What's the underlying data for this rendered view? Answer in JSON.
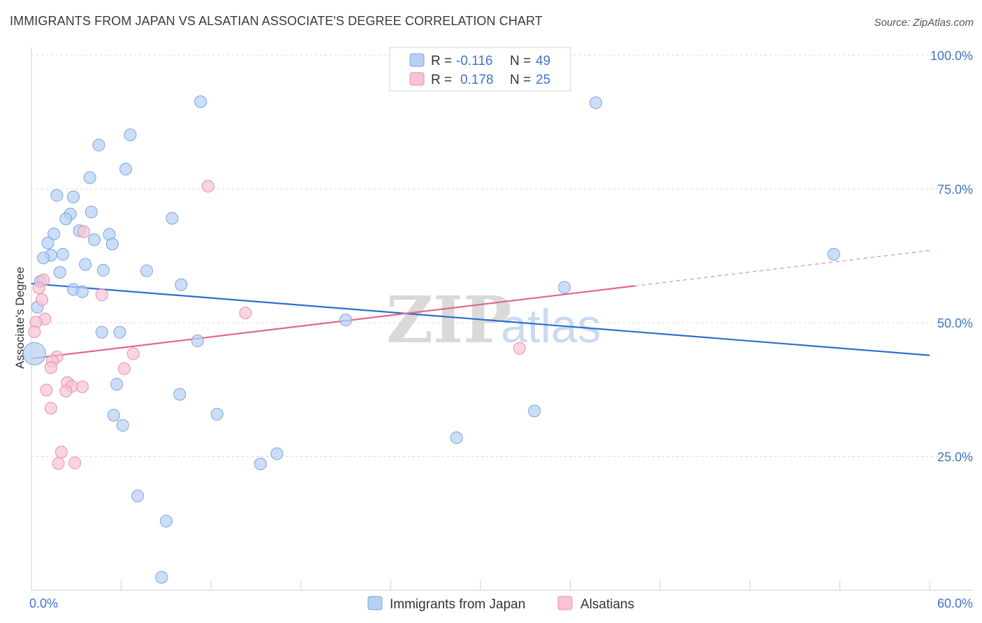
{
  "title": "IMMIGRANTS FROM JAPAN VS ALSATIAN ASSOCIATE'S DEGREE CORRELATION CHART",
  "source": "Source: ZipAtlas.com",
  "watermark": {
    "zip": "ZIP",
    "atlas": "atlas"
  },
  "colors": {
    "blue_fill": "#b7d0f3",
    "blue_stroke": "#7aa4dd",
    "blue_line": "#2c6fce",
    "pink_fill": "#f8c3d3",
    "pink_stroke": "#e88fab",
    "pink_line": "#e0668f",
    "grid": "#d8d8d8",
    "axis_text": "#3f74c9"
  },
  "legend": {
    "rows": [
      {
        "r_label": "R =",
        "r_value": "-0.116",
        "n_label": "N =",
        "n_value": "49"
      },
      {
        "r_label": "R =",
        "r_value": "0.178",
        "n_label": "N =",
        "n_value": "25"
      }
    ]
  },
  "bottom_legend": [
    "Immigrants from Japan",
    "Alsatians"
  ],
  "chart_data": {
    "type": "scatter",
    "title": "IMMIGRANTS FROM JAPAN VS ALSATIAN ASSOCIATE'S DEGREE CORRELATION CHART",
    "xlabel": "",
    "ylabel": "Associate's Degree",
    "xlim": [
      0,
      60
    ],
    "ylim": [
      0,
      100
    ],
    "x_tick_labels": [
      {
        "value": 0,
        "label": "0.0%"
      },
      {
        "value": 60,
        "label": "60.0%"
      }
    ],
    "y_tick_labels": [
      {
        "value": 100,
        "label": "100.0%"
      },
      {
        "value": 75,
        "label": "75.0%"
      },
      {
        "value": 50,
        "label": "50.0%"
      },
      {
        "value": 25,
        "label": "25.0%"
      }
    ],
    "series": [
      {
        "name": "Immigrants from Japan",
        "color": "blue",
        "r": -0.116,
        "n": 49,
        "trend": {
          "x0": 0,
          "y0": 57.3,
          "x1": 60,
          "y1": 43.9,
          "dashed_from": null
        },
        "points": [
          [
            11.3,
            91.3
          ],
          [
            37.7,
            91.1
          ],
          [
            6.6,
            85.1
          ],
          [
            4.5,
            83.2
          ],
          [
            6.3,
            78.7
          ],
          [
            3.9,
            77.1
          ],
          [
            1.7,
            73.8
          ],
          [
            2.8,
            73.5
          ],
          [
            2.6,
            70.3
          ],
          [
            4.0,
            70.7
          ],
          [
            9.4,
            69.5
          ],
          [
            2.3,
            69.4
          ],
          [
            3.2,
            67.2
          ],
          [
            1.5,
            66.6
          ],
          [
            5.2,
            66.5
          ],
          [
            4.2,
            65.5
          ],
          [
            5.4,
            64.7
          ],
          [
            1.1,
            64.9
          ],
          [
            2.1,
            62.8
          ],
          [
            1.3,
            62.6
          ],
          [
            0.8,
            62.1
          ],
          [
            3.6,
            60.9
          ],
          [
            4.8,
            59.8
          ],
          [
            7.7,
            59.7
          ],
          [
            1.9,
            59.4
          ],
          [
            0.6,
            57.7
          ],
          [
            10.0,
            57.1
          ],
          [
            2.8,
            56.2
          ],
          [
            3.4,
            55.8
          ],
          [
            35.6,
            56.6
          ],
          [
            53.6,
            62.8
          ],
          [
            0.4,
            52.9
          ],
          [
            21.0,
            50.5
          ],
          [
            4.7,
            48.2
          ],
          [
            5.9,
            48.2
          ],
          [
            11.1,
            46.6
          ],
          [
            0.2,
            44.2
          ],
          [
            5.7,
            38.5
          ],
          [
            9.9,
            36.6
          ],
          [
            33.6,
            33.5
          ],
          [
            5.5,
            32.7
          ],
          [
            12.4,
            32.9
          ],
          [
            6.1,
            30.8
          ],
          [
            28.4,
            28.5
          ],
          [
            16.4,
            25.5
          ],
          [
            15.3,
            23.6
          ],
          [
            7.1,
            17.6
          ],
          [
            9.0,
            12.9
          ],
          [
            8.7,
            2.4
          ]
        ]
      },
      {
        "name": "Alsatians",
        "color": "pink",
        "r": 0.178,
        "n": 25,
        "trend": {
          "x0": 0,
          "y0": 43.3,
          "x1": 60,
          "y1": 63.5,
          "dashed_from": 40.3
        },
        "points": [
          [
            11.8,
            75.5
          ],
          [
            3.5,
            67.0
          ],
          [
            0.8,
            58.0
          ],
          [
            0.5,
            56.5
          ],
          [
            4.7,
            55.2
          ],
          [
            0.7,
            54.3
          ],
          [
            14.3,
            51.8
          ],
          [
            0.9,
            50.7
          ],
          [
            0.3,
            50.1
          ],
          [
            0.2,
            48.3
          ],
          [
            32.6,
            45.2
          ],
          [
            6.8,
            44.2
          ],
          [
            1.7,
            43.6
          ],
          [
            1.4,
            42.8
          ],
          [
            1.3,
            41.6
          ],
          [
            6.2,
            41.4
          ],
          [
            2.4,
            38.8
          ],
          [
            2.7,
            38.1
          ],
          [
            3.4,
            38.0
          ],
          [
            1.0,
            37.4
          ],
          [
            2.3,
            37.2
          ],
          [
            1.3,
            34.0
          ],
          [
            2.0,
            25.8
          ],
          [
            1.8,
            23.7
          ],
          [
            2.9,
            23.8
          ]
        ]
      }
    ]
  }
}
